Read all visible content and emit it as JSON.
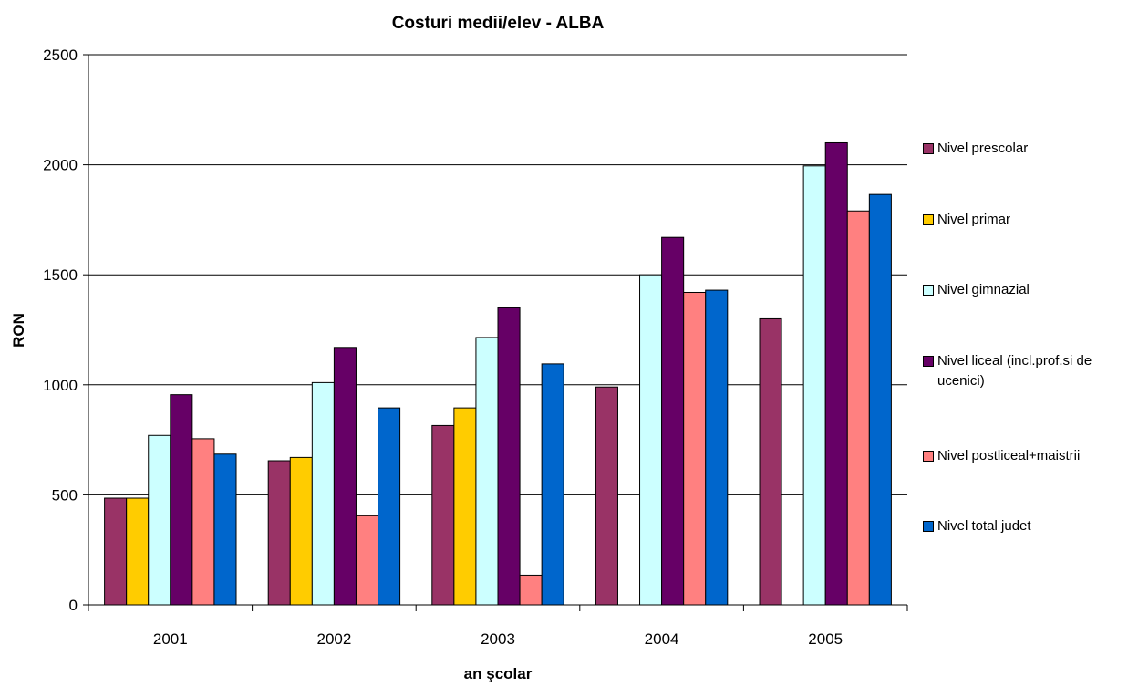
{
  "chart_data": {
    "type": "bar",
    "title": "Costuri medii/elev - ALBA",
    "xlabel": "an şcolar",
    "ylabel": "RON",
    "ylim": [
      0,
      2500
    ],
    "yticks": [
      "0",
      "500",
      "1000",
      "1500",
      "2000",
      "2500"
    ],
    "categories": [
      "2001",
      "2002",
      "2003",
      "2004",
      "2005"
    ],
    "grid": true,
    "legend_position": "right",
    "series": [
      {
        "name": "Nivel prescolar",
        "color": "#993366",
        "values": [
          485,
          655,
          815,
          990,
          1300
        ]
      },
      {
        "name": "Nivel primar",
        "color": "#FFCC00",
        "values": [
          485,
          670,
          895,
          0,
          0
        ]
      },
      {
        "name": "Nivel gimnazial",
        "color": "#CCFFFF",
        "values": [
          770,
          1010,
          1215,
          1500,
          1995
        ]
      },
      {
        "name": "Nivel liceal (incl.prof.si de ucenici)",
        "color": "#660066",
        "values": [
          955,
          1170,
          1350,
          1670,
          2100
        ]
      },
      {
        "name": "Nivel postliceal+maistrii",
        "color": "#FF8080",
        "values": [
          755,
          405,
          135,
          1420,
          1790
        ]
      },
      {
        "name": "Nivel total judet",
        "color": "#0066CC",
        "values": [
          685,
          895,
          1095,
          1430,
          1865
        ]
      }
    ]
  }
}
